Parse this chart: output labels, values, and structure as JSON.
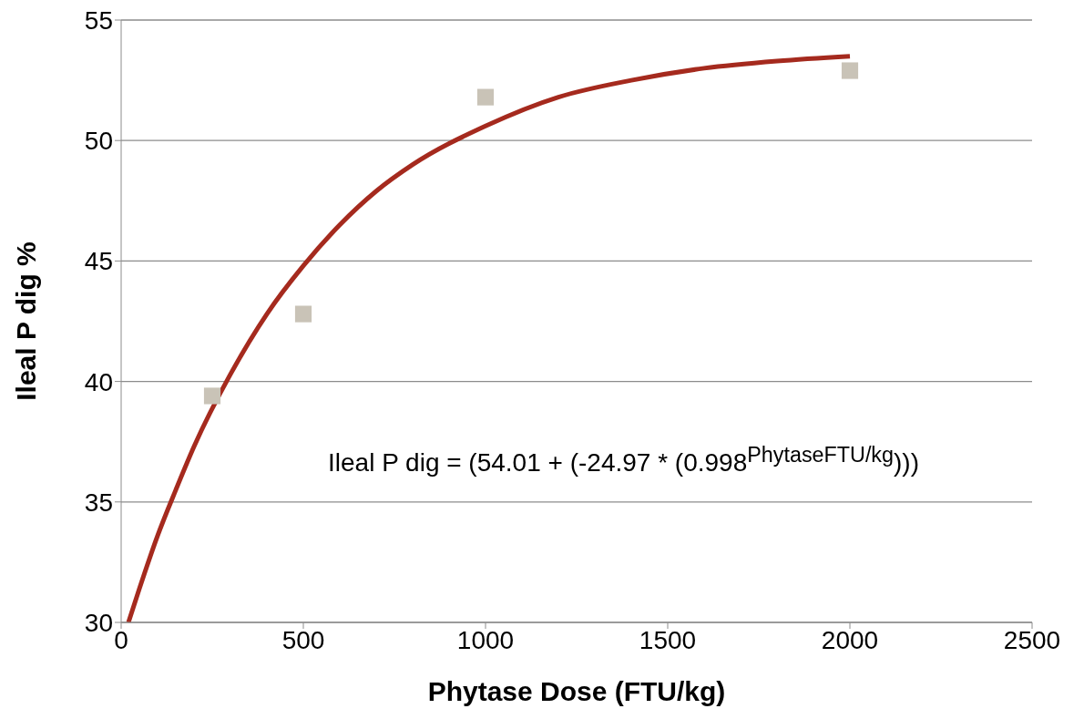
{
  "chart_data": {
    "type": "scatter",
    "xlabel": "Phytase Dose (FTU/kg)",
    "ylabel": "Ileal P dig %",
    "xlim": [
      0,
      2500
    ],
    "xticks": [
      0,
      500,
      1000,
      1500,
      2000,
      2500
    ],
    "ylim": [
      30,
      55
    ],
    "yticks": [
      30,
      35,
      40,
      45,
      50,
      55
    ],
    "grid": "y",
    "marker": "square",
    "series": [
      {
        "color": "#c9c3b7",
        "x": [
          250,
          500,
          1000,
          2000
        ],
        "values": [
          39.4,
          42.8,
          51.8,
          52.9
        ]
      },
      {
        "type": "line",
        "color": "#a52a1e",
        "marker": "none",
        "x": [
          20,
          50,
          100,
          150,
          200,
          300,
          400,
          500,
          600,
          700,
          800,
          1000,
          1200,
          1400,
          1600,
          1800,
          2000
        ],
        "values": [
          30.0,
          31.4,
          33.6,
          35.5,
          37.3,
          40.3,
          42.8,
          44.8,
          46.5,
          47.9,
          49.0,
          50.6,
          51.8,
          52.5,
          53.0,
          53.3,
          53.5
        ]
      }
    ],
    "annotations": [
      "Ileal P dig = (54.01 + (-24.97 * (0.998$^{PhytaseFTU/kg}$)))"
    ]
  }
}
